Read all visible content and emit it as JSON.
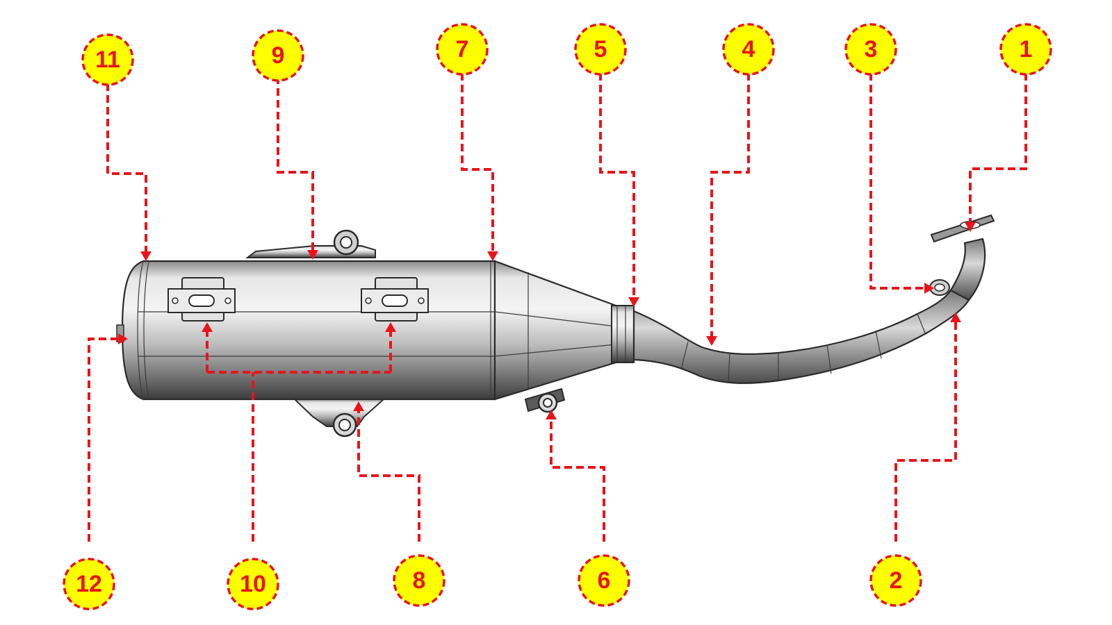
{
  "diagram": {
    "colors": {
      "callout_fill": "#ffff00",
      "callout_border": "#e8141b",
      "leader_line": "#e8141b",
      "number_text": "#e8141b",
      "part_metal": "#b9b9b9",
      "background": "#ffffff"
    },
    "callouts": [
      {
        "id": "1",
        "label": "1"
      },
      {
        "id": "2",
        "label": "2"
      },
      {
        "id": "3",
        "label": "3"
      },
      {
        "id": "4",
        "label": "4"
      },
      {
        "id": "5",
        "label": "5"
      },
      {
        "id": "6",
        "label": "6"
      },
      {
        "id": "7",
        "label": "7"
      },
      {
        "id": "8",
        "label": "8"
      },
      {
        "id": "9",
        "label": "9"
      },
      {
        "id": "10",
        "label": "10"
      },
      {
        "id": "11",
        "label": "11"
      },
      {
        "id": "12",
        "label": "12"
      }
    ]
  }
}
